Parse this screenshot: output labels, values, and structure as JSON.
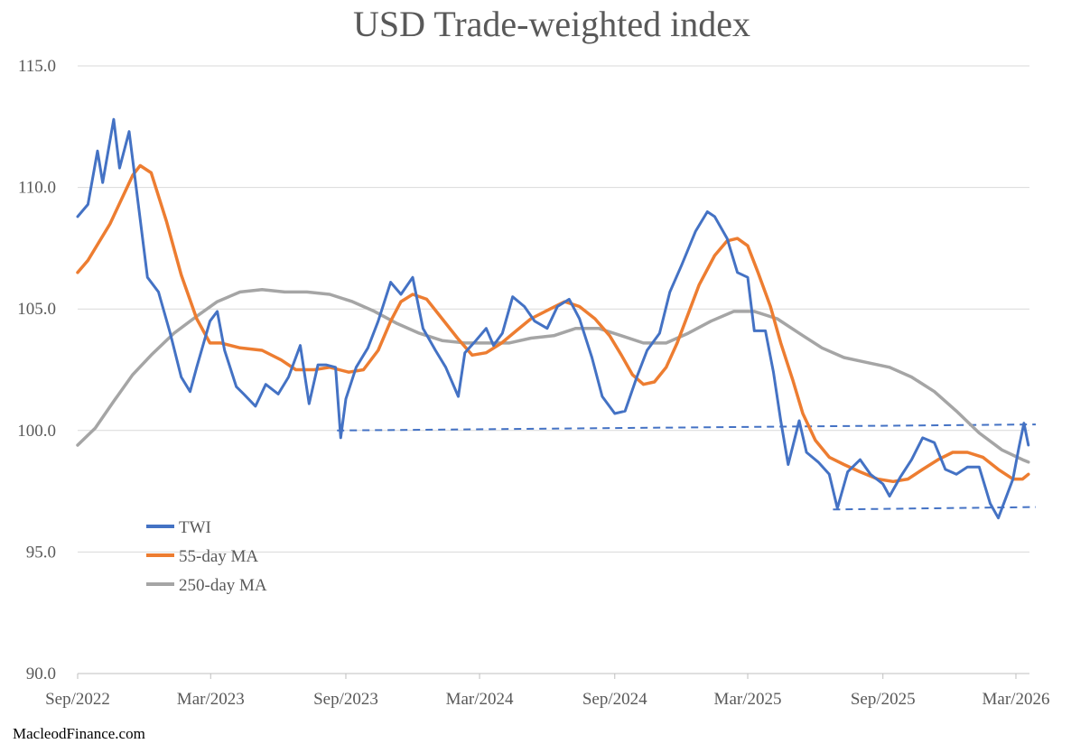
{
  "chart_data": {
    "type": "line",
    "title": "USD Trade-weighted index",
    "xlabel": "",
    "ylabel": "",
    "ylim": [
      90.0,
      115.0
    ],
    "yticks": [
      "90.0",
      "95.0",
      "100.0",
      "105.0",
      "110.0",
      "115.0"
    ],
    "xticks": [
      {
        "label": "Sep/2022",
        "date": "2022-09-01"
      },
      {
        "label": "Mar/2023",
        "date": "2023-03-01"
      },
      {
        "label": "Sep/2023",
        "date": "2023-09-01"
      },
      {
        "label": "Mar/2024",
        "date": "2024-03-01"
      },
      {
        "label": "Sep/2024",
        "date": "2024-09-01"
      },
      {
        "label": "Mar/2025",
        "date": "2025-03-01"
      },
      {
        "label": "Sep/2025",
        "date": "2025-09-01"
      },
      {
        "label": "Mar/2026",
        "date": "2026-03-01"
      }
    ],
    "grid": true,
    "legend_position": "lower-left",
    "series": [
      {
        "name": "TWI",
        "color": "#4472C4",
        "points": [
          [
            "2022-09-01",
            108.8
          ],
          [
            "2022-09-15",
            109.3
          ],
          [
            "2022-09-28",
            111.5
          ],
          [
            "2022-10-05",
            110.2
          ],
          [
            "2022-10-20",
            112.8
          ],
          [
            "2022-10-28",
            110.8
          ],
          [
            "2022-11-10",
            112.3
          ],
          [
            "2022-11-25",
            108.7
          ],
          [
            "2022-12-05",
            106.3
          ],
          [
            "2022-12-20",
            105.7
          ],
          [
            "2023-01-05",
            104.0
          ],
          [
            "2023-01-20",
            102.2
          ],
          [
            "2023-02-01",
            101.6
          ],
          [
            "2023-02-10",
            102.6
          ],
          [
            "2023-02-28",
            104.5
          ],
          [
            "2023-03-10",
            104.9
          ],
          [
            "2023-03-20",
            103.3
          ],
          [
            "2023-04-05",
            101.8
          ],
          [
            "2023-04-15",
            101.5
          ],
          [
            "2023-05-01",
            101.0
          ],
          [
            "2023-05-15",
            101.9
          ],
          [
            "2023-06-01",
            101.5
          ],
          [
            "2023-06-15",
            102.2
          ],
          [
            "2023-07-01",
            103.5
          ],
          [
            "2023-07-13",
            101.1
          ],
          [
            "2023-07-25",
            102.7
          ],
          [
            "2023-08-05",
            102.7
          ],
          [
            "2023-08-18",
            102.6
          ],
          [
            "2023-08-25",
            99.7
          ],
          [
            "2023-09-01",
            101.3
          ],
          [
            "2023-09-15",
            102.6
          ],
          [
            "2023-10-01",
            103.4
          ],
          [
            "2023-10-15",
            104.5
          ],
          [
            "2023-11-01",
            106.1
          ],
          [
            "2023-11-15",
            105.6
          ],
          [
            "2023-12-01",
            106.3
          ],
          [
            "2023-12-15",
            104.2
          ],
          [
            "2024-01-01",
            103.3
          ],
          [
            "2024-01-15",
            102.6
          ],
          [
            "2024-02-01",
            101.4
          ],
          [
            "2024-02-10",
            103.2
          ],
          [
            "2024-02-25",
            103.7
          ],
          [
            "2024-03-10",
            104.2
          ],
          [
            "2024-03-20",
            103.5
          ],
          [
            "2024-04-01",
            104.0
          ],
          [
            "2024-04-15",
            105.5
          ],
          [
            "2024-05-01",
            105.1
          ],
          [
            "2024-05-15",
            104.5
          ],
          [
            "2024-06-01",
            104.2
          ],
          [
            "2024-06-15",
            105.1
          ],
          [
            "2024-07-01",
            105.4
          ],
          [
            "2024-07-15",
            104.6
          ],
          [
            "2024-08-01",
            103.0
          ],
          [
            "2024-08-15",
            101.4
          ],
          [
            "2024-09-01",
            100.7
          ],
          [
            "2024-09-15",
            100.8
          ],
          [
            "2024-10-01",
            102.2
          ],
          [
            "2024-10-15",
            103.3
          ],
          [
            "2024-11-01",
            104.0
          ],
          [
            "2024-11-15",
            105.7
          ],
          [
            "2024-12-01",
            106.8
          ],
          [
            "2024-12-20",
            108.2
          ],
          [
            "2025-01-05",
            109.0
          ],
          [
            "2025-01-15",
            108.8
          ],
          [
            "2025-02-01",
            107.9
          ],
          [
            "2025-02-15",
            106.5
          ],
          [
            "2025-03-01",
            106.3
          ],
          [
            "2025-03-10",
            104.1
          ],
          [
            "2025-03-25",
            104.1
          ],
          [
            "2025-04-05",
            102.4
          ],
          [
            "2025-04-15",
            100.4
          ],
          [
            "2025-04-25",
            98.6
          ],
          [
            "2025-05-10",
            100.4
          ],
          [
            "2025-05-20",
            99.1
          ],
          [
            "2025-06-05",
            98.7
          ],
          [
            "2025-06-20",
            98.2
          ],
          [
            "2025-07-01",
            96.8
          ],
          [
            "2025-07-15",
            98.3
          ],
          [
            "2025-08-01",
            98.8
          ],
          [
            "2025-08-15",
            98.2
          ],
          [
            "2025-09-01",
            97.8
          ],
          [
            "2025-09-10",
            97.3
          ],
          [
            "2025-09-25",
            98.1
          ],
          [
            "2025-10-10",
            98.8
          ],
          [
            "2025-10-25",
            99.7
          ],
          [
            "2025-11-10",
            99.5
          ],
          [
            "2025-11-25",
            98.4
          ],
          [
            "2025-12-10",
            98.2
          ],
          [
            "2025-12-25",
            98.5
          ],
          [
            "2026-01-10",
            98.5
          ],
          [
            "2026-01-25",
            97.0
          ],
          [
            "2026-02-05",
            96.4
          ],
          [
            "2026-02-15",
            97.2
          ],
          [
            "2026-02-25",
            98.0
          ],
          [
            "2026-03-05",
            99.3
          ],
          [
            "2026-03-12",
            100.3
          ],
          [
            "2026-03-18",
            99.4
          ]
        ]
      },
      {
        "name": "55-day MA",
        "color": "#ED7D31",
        "points": [
          [
            "2022-09-01",
            106.5
          ],
          [
            "2022-09-15",
            107.0
          ],
          [
            "2022-10-15",
            108.5
          ],
          [
            "2022-11-15",
            110.5
          ],
          [
            "2022-11-25",
            110.9
          ],
          [
            "2022-12-10",
            110.6
          ],
          [
            "2022-12-31",
            108.6
          ],
          [
            "2023-01-20",
            106.4
          ],
          [
            "2023-02-10",
            104.6
          ],
          [
            "2023-02-28",
            103.6
          ],
          [
            "2023-03-15",
            103.6
          ],
          [
            "2023-04-10",
            103.4
          ],
          [
            "2023-05-10",
            103.3
          ],
          [
            "2023-06-05",
            102.9
          ],
          [
            "2023-06-25",
            102.5
          ],
          [
            "2023-07-20",
            102.5
          ],
          [
            "2023-08-10",
            102.6
          ],
          [
            "2023-09-05",
            102.4
          ],
          [
            "2023-09-25",
            102.5
          ],
          [
            "2023-10-15",
            103.3
          ],
          [
            "2023-11-01",
            104.5
          ],
          [
            "2023-11-15",
            105.3
          ],
          [
            "2023-12-01",
            105.6
          ],
          [
            "2023-12-20",
            105.4
          ],
          [
            "2024-01-10",
            104.6
          ],
          [
            "2024-01-31",
            103.8
          ],
          [
            "2024-02-20",
            103.1
          ],
          [
            "2024-03-10",
            103.2
          ],
          [
            "2024-03-31",
            103.6
          ],
          [
            "2024-04-20",
            104.1
          ],
          [
            "2024-05-10",
            104.6
          ],
          [
            "2024-06-05",
            105.0
          ],
          [
            "2024-06-25",
            105.3
          ],
          [
            "2024-07-15",
            105.1
          ],
          [
            "2024-08-05",
            104.6
          ],
          [
            "2024-08-25",
            103.9
          ],
          [
            "2024-09-10",
            103.1
          ],
          [
            "2024-09-25",
            102.3
          ],
          [
            "2024-10-10",
            101.9
          ],
          [
            "2024-10-25",
            102.0
          ],
          [
            "2024-11-10",
            102.6
          ],
          [
            "2024-11-25",
            103.6
          ],
          [
            "2024-12-10",
            104.8
          ],
          [
            "2024-12-25",
            106.0
          ],
          [
            "2025-01-15",
            107.2
          ],
          [
            "2025-02-01",
            107.8
          ],
          [
            "2025-02-15",
            107.9
          ],
          [
            "2025-03-01",
            107.6
          ],
          [
            "2025-03-15",
            106.5
          ],
          [
            "2025-04-01",
            105.1
          ],
          [
            "2025-04-15",
            103.6
          ],
          [
            "2025-05-01",
            102.1
          ],
          [
            "2025-05-15",
            100.7
          ],
          [
            "2025-06-01",
            99.6
          ],
          [
            "2025-06-20",
            98.9
          ],
          [
            "2025-07-10",
            98.6
          ],
          [
            "2025-08-01",
            98.3
          ],
          [
            "2025-08-25",
            98.0
          ],
          [
            "2025-09-15",
            97.9
          ],
          [
            "2025-10-05",
            98.0
          ],
          [
            "2025-10-25",
            98.4
          ],
          [
            "2025-11-15",
            98.8
          ],
          [
            "2025-12-05",
            99.1
          ],
          [
            "2025-12-25",
            99.1
          ],
          [
            "2026-01-15",
            98.9
          ],
          [
            "2026-02-05",
            98.4
          ],
          [
            "2026-02-25",
            98.0
          ],
          [
            "2026-03-10",
            98.0
          ],
          [
            "2026-03-18",
            98.2
          ]
        ]
      },
      {
        "name": "250-day MA",
        "color": "#A5A5A5",
        "points": [
          [
            "2022-09-01",
            99.4
          ],
          [
            "2022-09-25",
            100.1
          ],
          [
            "2022-10-20",
            101.2
          ],
          [
            "2022-11-15",
            102.3
          ],
          [
            "2022-12-10",
            103.1
          ],
          [
            "2023-01-10",
            104.0
          ],
          [
            "2023-02-10",
            104.7
          ],
          [
            "2023-03-10",
            105.3
          ],
          [
            "2023-04-10",
            105.7
          ],
          [
            "2023-05-10",
            105.8
          ],
          [
            "2023-06-10",
            105.7
          ],
          [
            "2023-07-10",
            105.7
          ],
          [
            "2023-08-10",
            105.6
          ],
          [
            "2023-09-10",
            105.3
          ],
          [
            "2023-10-10",
            104.9
          ],
          [
            "2023-11-10",
            104.4
          ],
          [
            "2023-12-10",
            104.0
          ],
          [
            "2024-01-10",
            103.7
          ],
          [
            "2024-02-10",
            103.6
          ],
          [
            "2024-03-10",
            103.6
          ],
          [
            "2024-04-10",
            103.6
          ],
          [
            "2024-05-10",
            103.8
          ],
          [
            "2024-06-10",
            103.9
          ],
          [
            "2024-07-10",
            104.2
          ],
          [
            "2024-08-10",
            104.2
          ],
          [
            "2024-09-10",
            103.9
          ],
          [
            "2024-10-10",
            103.6
          ],
          [
            "2024-11-10",
            103.6
          ],
          [
            "2024-12-10",
            104.0
          ],
          [
            "2025-01-10",
            104.5
          ],
          [
            "2025-02-10",
            104.9
          ],
          [
            "2025-03-10",
            104.9
          ],
          [
            "2025-04-10",
            104.6
          ],
          [
            "2025-05-10",
            104.0
          ],
          [
            "2025-06-10",
            103.4
          ],
          [
            "2025-07-10",
            103.0
          ],
          [
            "2025-08-10",
            102.8
          ],
          [
            "2025-09-10",
            102.6
          ],
          [
            "2025-10-10",
            102.2
          ],
          [
            "2025-11-10",
            101.6
          ],
          [
            "2025-12-10",
            100.8
          ],
          [
            "2026-01-10",
            99.9
          ],
          [
            "2026-02-10",
            99.2
          ],
          [
            "2026-03-10",
            98.8
          ],
          [
            "2026-03-18",
            98.7
          ]
        ]
      }
    ],
    "reference_lines": [
      {
        "name": "support-line-upper",
        "style": "dashed",
        "color": "#4472C4",
        "from": [
          "2023-08-20",
          100.0
        ],
        "to": [
          "2026-03-28",
          100.25
        ]
      },
      {
        "name": "support-line-lower",
        "style": "dashed",
        "color": "#4472C4",
        "from": [
          "2025-06-25",
          96.75
        ],
        "to": [
          "2026-03-28",
          96.85
        ]
      }
    ]
  },
  "source": "MacleodFinance.com"
}
